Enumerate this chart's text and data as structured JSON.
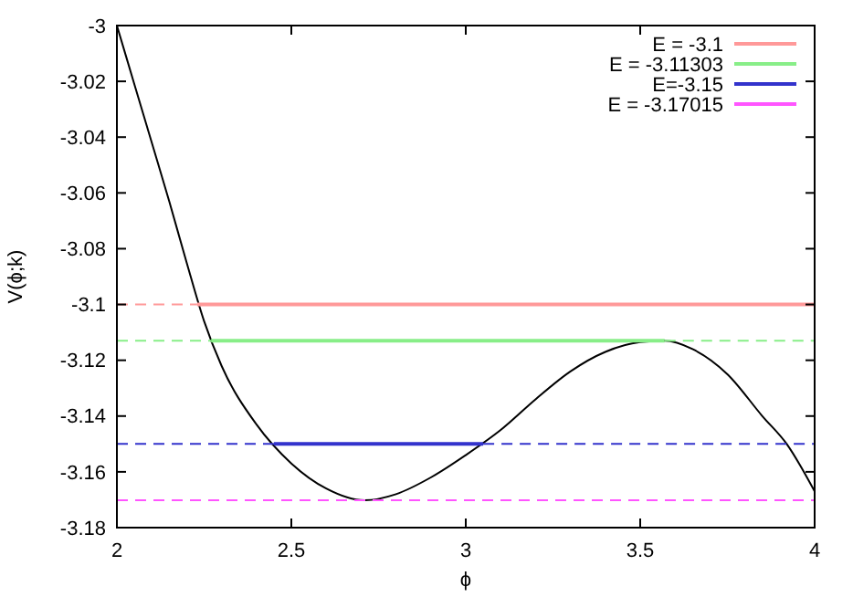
{
  "chart_data": {
    "type": "line",
    "xlabel": "ϕ",
    "ylabel": "V(ϕ;k)",
    "xlim": [
      2,
      4
    ],
    "ylim": [
      -3.18,
      -3
    ],
    "xticks": [
      2,
      2.5,
      3,
      3.5,
      4
    ],
    "yticks": [
      -3.18,
      -3.16,
      -3.14,
      -3.12,
      -3.1,
      -3.08,
      -3.06,
      -3.04,
      -3.02,
      -3
    ],
    "grid": false,
    "legend": "top right",
    "marker": "none",
    "series": [
      {
        "color": "#000000",
        "line_style": "solid",
        "x": [
          2,
          2.05,
          2.1,
          2.15,
          2.2,
          2.25,
          2.3,
          2.4,
          2.5,
          2.6,
          2.71,
          2.8,
          2.9,
          3,
          3.1,
          3.2,
          3.3,
          3.4,
          3.5,
          3.57,
          3.65,
          3.75,
          3.85,
          3.92,
          4
        ],
        "values": [
          -3,
          -3.021,
          -3.042,
          -3.063,
          -3.085,
          -3.106,
          -3.122,
          -3.143,
          -3.157,
          -3.166,
          -3.1702,
          -3.168,
          -3.162,
          -3.154,
          -3.145,
          -3.134,
          -3.124,
          -3.117,
          -3.1135,
          -3.113,
          -3.116,
          -3.125,
          -3.14,
          -3.15,
          -3.167
        ]
      },
      {
        "name": "E = -3.1",
        "color": "#ff9999",
        "line_style": "solid",
        "x": [
          2.23,
          4
        ],
        "values": [
          -3.1,
          -3.1
        ]
      },
      {
        "name": "E = -3.11303",
        "color": "#88ee88",
        "line_style": "solid",
        "x": [
          2.27,
          3.57
        ],
        "values": [
          -3.11303,
          -3.11303
        ]
      },
      {
        "name": "E=-3.15",
        "color": "#3333cc",
        "line_style": "solid",
        "x": [
          2.45,
          3.05
        ],
        "values": [
          -3.15,
          -3.15
        ]
      },
      {
        "name": "E = -3.17015",
        "color": "#ff55ff",
        "line_style": "dashed",
        "x": [
          2,
          4
        ],
        "values": [
          -3.17015,
          -3.17015
        ]
      },
      {
        "color": "#ff9999",
        "line_style": "dashed",
        "x": [
          2,
          2.23
        ],
        "values": [
          -3.1,
          -3.1
        ]
      },
      {
        "color": "#88ee88",
        "line_style": "dashed",
        "x": [
          2,
          2.27
        ],
        "values": [
          -3.11303,
          -3.11303
        ]
      },
      {
        "color": "#88ee88",
        "line_style": "dashed",
        "x": [
          3.57,
          4
        ],
        "values": [
          -3.11303,
          -3.11303
        ]
      },
      {
        "color": "#3333cc",
        "line_style": "dashed",
        "x": [
          2,
          2.45
        ],
        "values": [
          -3.15,
          -3.15
        ]
      },
      {
        "color": "#3333cc",
        "line_style": "dashed",
        "x": [
          3.05,
          4
        ],
        "values": [
          -3.15,
          -3.15
        ]
      }
    ]
  }
}
